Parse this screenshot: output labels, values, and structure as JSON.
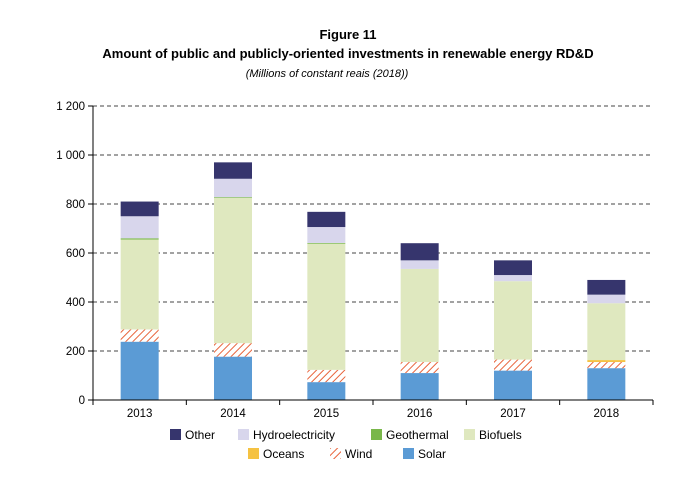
{
  "chart_data": {
    "type": "bar",
    "stacked": true,
    "figure_label": "Figure 11",
    "title": "Amount of public and publicly-oriented investments in renewable energy RD&D",
    "subtitle": "(Millions of constant reais (2018))",
    "categories": [
      "2013",
      "2014",
      "2015",
      "2016",
      "2017",
      "2018"
    ],
    "ylim": [
      0,
      1200
    ],
    "yticks": [
      0,
      200,
      400,
      600,
      800,
      1000,
      1200
    ],
    "ytick_labels": [
      "0",
      "200",
      "400",
      "600",
      "800",
      "1 000",
      "1 200"
    ],
    "grid": "horizontal-dashed",
    "legend_position": "bottom",
    "series": [
      {
        "name": "Solar",
        "color": "#5b9bd5",
        "pattern": "solid",
        "values": [
          238,
          177,
          73,
          110,
          120,
          130
        ]
      },
      {
        "name": "Wind",
        "color": "#e8643c",
        "pattern": "hatch",
        "values": [
          50,
          55,
          50,
          45,
          45,
          25
        ]
      },
      {
        "name": "Oceans",
        "color": "#f5c242",
        "pattern": "solid",
        "values": [
          0,
          0,
          0,
          0,
          0,
          8
        ]
      },
      {
        "name": "Biofuels",
        "color": "#dfe8bf",
        "pattern": "solid",
        "values": [
          367,
          593,
          515,
          380,
          320,
          232
        ]
      },
      {
        "name": "Geothermal",
        "color": "#79b74a",
        "pattern": "solid",
        "values": [
          5,
          3,
          3,
          0,
          0,
          0
        ]
      },
      {
        "name": "Hydroelectricity",
        "color": "#d8d6ec",
        "pattern": "solid",
        "values": [
          90,
          75,
          65,
          35,
          25,
          35
        ]
      },
      {
        "name": "Other",
        "color": "#36356d",
        "pattern": "solid",
        "values": [
          60,
          67,
          62,
          70,
          60,
          60
        ]
      }
    ],
    "legend_rows": [
      [
        "Other",
        "Hydroelectricity",
        "Geothermal",
        "Biofuels"
      ],
      [
        "Oceans",
        "Wind",
        "Solar"
      ]
    ]
  }
}
